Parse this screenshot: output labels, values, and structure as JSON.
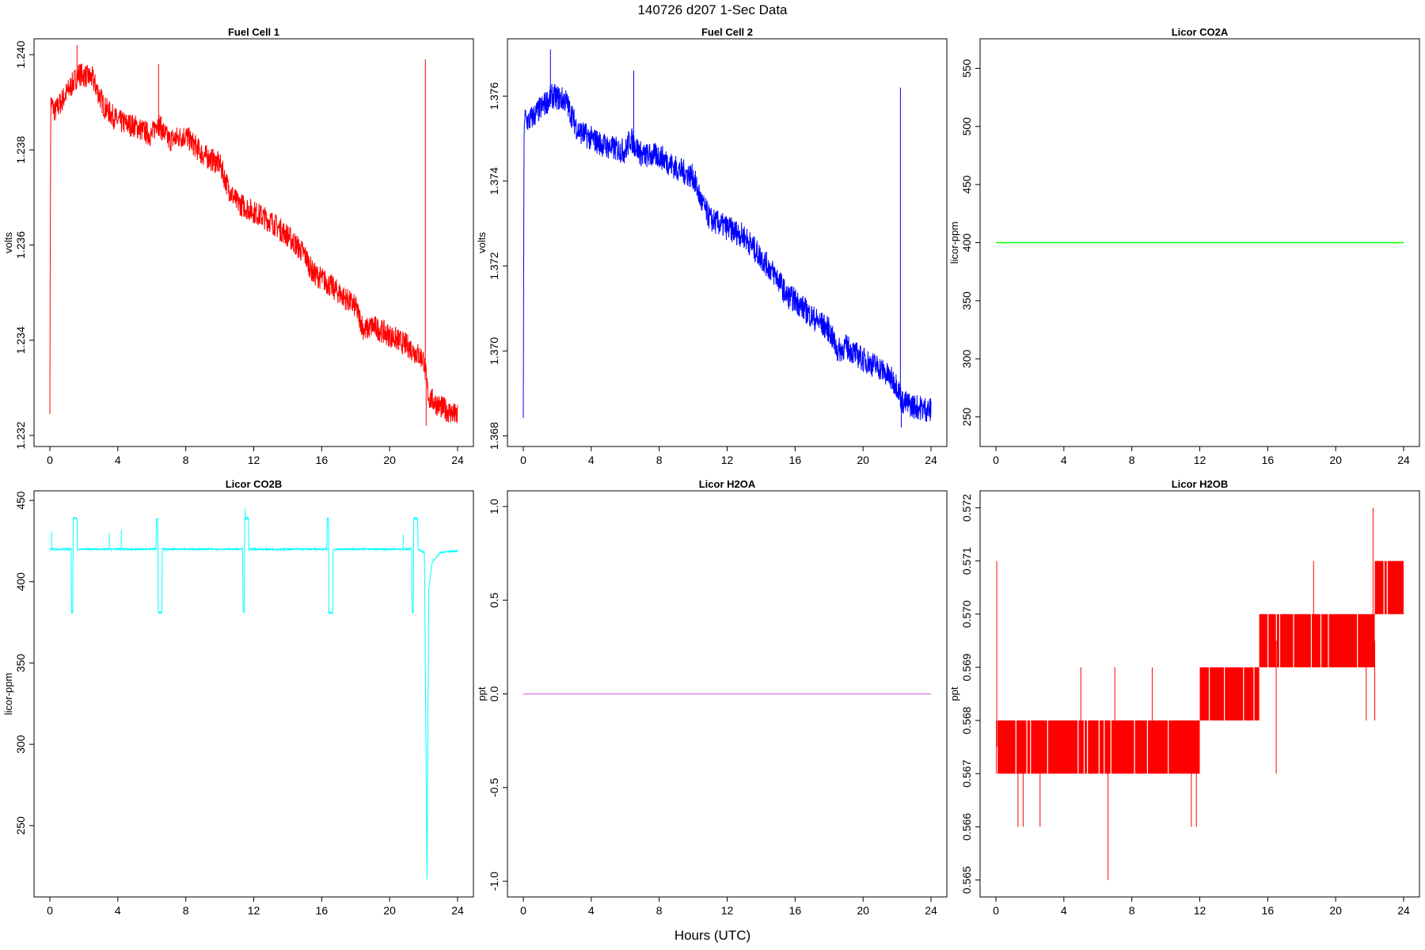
{
  "figure": {
    "title": "140726   d207   1-Sec Data",
    "xlabel": "Hours (UTC)"
  },
  "chart_data": [
    {
      "type": "line",
      "title": "Fuel Cell 1",
      "ylabel": "volts",
      "color": "#ff0000",
      "xlim": [
        0,
        24
      ],
      "ylim": [
        1.2319,
        1.2402
      ],
      "xticks": [
        0,
        4,
        8,
        12,
        16,
        20,
        24
      ],
      "yticks": [
        1.232,
        1.234,
        1.236,
        1.238,
        1.24
      ],
      "ytick_labels": [
        "1.232",
        "1.234",
        "1.236",
        "1.238",
        "1.240"
      ],
      "x": [
        0,
        0.05,
        0.3,
        1,
        1.7,
        2.5,
        3.2,
        4,
        5,
        6,
        6.3,
        7,
        8,
        9,
        10,
        10.5,
        11,
        12,
        13,
        14,
        15,
        15.5,
        16,
        17,
        18,
        18.5,
        19,
        20,
        21,
        22,
        22.3,
        23,
        24
      ],
      "y": [
        1.2327,
        1.239,
        1.2388,
        1.2392,
        1.2396,
        1.2395,
        1.2389,
        1.2386,
        1.2385,
        1.2383,
        1.2386,
        1.2382,
        1.2383,
        1.2379,
        1.2377,
        1.2372,
        1.2369,
        1.2367,
        1.2365,
        1.2362,
        1.2358,
        1.2354,
        1.2353,
        1.235,
        1.2347,
        1.2342,
        1.2343,
        1.2341,
        1.2339,
        1.2336,
        1.2328,
        1.2326,
        1.2324
      ],
      "noise": 0.00025,
      "spikes": [
        {
          "x": 1.6,
          "y": 1.2402
        },
        {
          "x": 6.4,
          "y": 1.2398
        },
        {
          "x": 22.1,
          "y": 1.2399
        },
        {
          "x": 22.15,
          "y": 1.2322
        }
      ]
    },
    {
      "type": "line",
      "title": "Fuel Cell 2",
      "ylabel": "volts",
      "color": "#0000ff",
      "xlim": [
        0,
        24
      ],
      "ylim": [
        1.3679,
        1.3772
      ],
      "xticks": [
        0,
        4,
        8,
        12,
        16,
        20,
        24
      ],
      "yticks": [
        1.368,
        1.37,
        1.372,
        1.374,
        1.376
      ],
      "ytick_labels": [
        "1.368",
        "1.370",
        "1.372",
        "1.374",
        "1.376"
      ],
      "x": [
        0,
        0.05,
        0.3,
        1,
        1.7,
        2.5,
        3.2,
        4,
        5,
        6,
        6.3,
        7,
        8,
        9,
        10,
        10.5,
        11,
        12,
        13,
        14,
        15,
        15.5,
        16,
        17,
        18,
        18.5,
        19,
        20,
        21,
        22,
        22.3,
        23,
        24
      ],
      "y": [
        1.3685,
        1.3755,
        1.3754,
        1.3757,
        1.376,
        1.3759,
        1.3752,
        1.375,
        1.3748,
        1.3747,
        1.375,
        1.3746,
        1.3746,
        1.3743,
        1.3741,
        1.3735,
        1.3731,
        1.3729,
        1.3727,
        1.3722,
        1.3717,
        1.3713,
        1.3712,
        1.3708,
        1.3705,
        1.37,
        1.3701,
        1.3698,
        1.3696,
        1.3692,
        1.3688,
        1.3687,
        1.3686
      ],
      "noise": 0.0003,
      "spikes": [
        {
          "x": 1.6,
          "y": 1.3771
        },
        {
          "x": 6.5,
          "y": 1.3766
        },
        {
          "x": 22.2,
          "y": 1.3762
        },
        {
          "x": 22.25,
          "y": 1.3682
        }
      ]
    },
    {
      "type": "line",
      "title": "Licor CO2A",
      "ylabel": "licor-ppm",
      "color": "#00ff00",
      "xlim": [
        0,
        24
      ],
      "ylim": [
        230,
        570
      ],
      "xticks": [
        0,
        4,
        8,
        12,
        16,
        20,
        24
      ],
      "yticks": [
        250,
        300,
        350,
        400,
        450,
        500,
        550
      ],
      "ytick_labels": [
        "250",
        "300",
        "350",
        "400",
        "450",
        "500",
        "550"
      ],
      "x": [
        0,
        24
      ],
      "y": [
        400,
        400
      ],
      "noise": 0,
      "spikes": []
    },
    {
      "type": "line",
      "title": "Licor CO2B",
      "ylabel": "licor-ppm",
      "color": "#00ffff",
      "xlim": [
        0,
        24
      ],
      "ylim": [
        210,
        452
      ],
      "xticks": [
        0,
        4,
        8,
        12,
        16,
        20,
        24
      ],
      "yticks": [
        250,
        300,
        350,
        400,
        450
      ],
      "ytick_labels": [
        "250",
        "300",
        "350",
        "400",
        "450"
      ],
      "x": [
        0,
        1.25,
        1.27,
        1.35,
        1.37,
        1.6,
        1.62,
        6.25,
        6.27,
        6.35,
        6.37,
        6.6,
        6.62,
        11.35,
        11.37,
        11.45,
        11.47,
        11.7,
        11.72,
        16.3,
        16.32,
        16.4,
        16.42,
        16.65,
        16.67,
        21.3,
        21.32,
        21.4,
        21.42,
        21.65,
        21.67,
        22.05,
        22.2,
        22.3,
        22.5,
        23,
        24
      ],
      "y": [
        420,
        420,
        381,
        381,
        439,
        439,
        420,
        420,
        439,
        439,
        381,
        381,
        420,
        420,
        381,
        381,
        439,
        439,
        420,
        420,
        439,
        439,
        381,
        381,
        420,
        420,
        381,
        381,
        439,
        439,
        420,
        418,
        215,
        395,
        412,
        418,
        419
      ],
      "noise": 0.5,
      "spikes": [
        {
          "x": 0.1,
          "y": 431
        },
        {
          "x": 3.5,
          "y": 430
        },
        {
          "x": 4.2,
          "y": 432
        },
        {
          "x": 11.5,
          "y": 445
        },
        {
          "x": 20.8,
          "y": 429
        }
      ]
    },
    {
      "type": "line",
      "title": "Licor H2OA",
      "ylabel": "ppt",
      "color": "#dd88dd",
      "xlim": [
        0,
        24
      ],
      "ylim": [
        -1.05,
        1.05
      ],
      "xticks": [
        0,
        4,
        8,
        12,
        16,
        20,
        24
      ],
      "yticks": [
        -1.0,
        -0.5,
        0.0,
        0.5,
        1.0
      ],
      "ytick_labels": [
        "-1.0",
        "-0.5",
        "0.0",
        "0.5",
        "1.0"
      ],
      "x": [
        0,
        24
      ],
      "y": [
        0,
        0
      ],
      "noise": 0,
      "spikes": []
    },
    {
      "type": "line",
      "title": "Licor H2OB",
      "ylabel": "ppt",
      "color": "#ff0000",
      "xlim": [
        0,
        24
      ],
      "ylim": [
        0.5648,
        0.5722
      ],
      "xticks": [
        0,
        4,
        8,
        12,
        16,
        20,
        24
      ],
      "yticks": [
        0.565,
        0.566,
        0.567,
        0.568,
        0.569,
        0.57,
        0.571,
        0.572
      ],
      "ytick_labels": [
        "0.565",
        "0.566",
        "0.567",
        "0.568",
        "0.569",
        "0.570",
        "0.571",
        "0.572"
      ],
      "bands": [
        {
          "x0": 0,
          "x1": 12,
          "low": 0.567,
          "high": 0.568
        },
        {
          "x0": 12,
          "x1": 15.5,
          "low": 0.568,
          "high": 0.569
        },
        {
          "x0": 15.5,
          "x1": 22.3,
          "low": 0.569,
          "high": 0.57
        },
        {
          "x0": 22.3,
          "x1": 24,
          "low": 0.57,
          "high": 0.571
        }
      ],
      "spikes": [
        {
          "x": 0.05,
          "y": 0.571
        },
        {
          "x": 1.3,
          "y": 0.566
        },
        {
          "x": 1.6,
          "y": 0.566
        },
        {
          "x": 2.6,
          "y": 0.566
        },
        {
          "x": 5.0,
          "y": 0.569
        },
        {
          "x": 6.6,
          "y": 0.565
        },
        {
          "x": 7.0,
          "y": 0.569
        },
        {
          "x": 9.2,
          "y": 0.569
        },
        {
          "x": 11.5,
          "y": 0.566
        },
        {
          "x": 11.8,
          "y": 0.566
        },
        {
          "x": 16.5,
          "y": 0.567
        },
        {
          "x": 18.7,
          "y": 0.571
        },
        {
          "x": 21.8,
          "y": 0.568
        },
        {
          "x": 22.2,
          "y": 0.572
        },
        {
          "x": 22.3,
          "y": 0.568
        }
      ]
    }
  ]
}
